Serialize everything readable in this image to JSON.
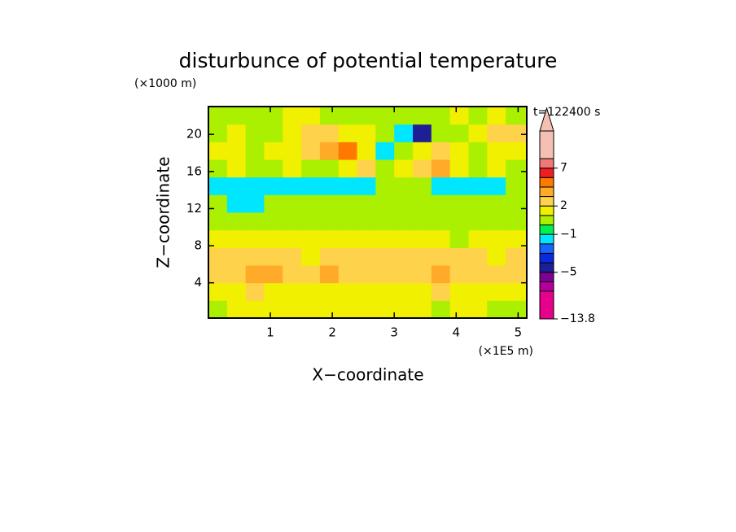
{
  "chart_data": {
    "type": "contour",
    "title": "disturbunce of potential temperature",
    "y_unit": "(×1000 m)",
    "x_unit": "(×1E5 m)",
    "xlabel": "X−coordinate",
    "ylabel": "Z−coordinate",
    "annotation": "t=122400 s",
    "xlim": [
      0,
      5.14
    ],
    "ylim": [
      0.2,
      23
    ],
    "xticks": [
      1,
      2,
      3,
      4,
      5
    ],
    "yticks": [
      4,
      8,
      12,
      16,
      20
    ],
    "x": [
      0.15,
      0.45,
      0.75,
      1.05,
      1.35,
      1.65,
      1.95,
      2.25,
      2.55,
      2.85,
      3.15,
      3.45,
      3.75,
      4.05,
      4.35,
      4.65,
      4.95
    ],
    "z": [
      1.15,
      3.05,
      4.95,
      6.85,
      8.75,
      10.65,
      12.55,
      14.45,
      16.35,
      18.25,
      20.15,
      22.05
    ],
    "values": [
      [
        0.5,
        1.5,
        1.5,
        1.5,
        1.5,
        1.5,
        1.5,
        1.5,
        1.5,
        1.5,
        1.5,
        1.5,
        0.5,
        1.5,
        1.5,
        0.5,
        0.5
      ],
      [
        1.5,
        1.5,
        2.5,
        1.5,
        1.5,
        1.5,
        1.5,
        1.5,
        1.5,
        1.5,
        1.5,
        1.5,
        2.5,
        1.5,
        1.5,
        1.5,
        1.5
      ],
      [
        2.5,
        2.5,
        3.5,
        3.5,
        2.5,
        2.5,
        3.5,
        2.5,
        2.5,
        2.5,
        2.5,
        2.5,
        3.5,
        2.5,
        2.5,
        2.5,
        2.5
      ],
      [
        2.5,
        2.5,
        2.5,
        2.5,
        2.5,
        1.5,
        2.5,
        2.5,
        2.5,
        2.5,
        2.5,
        2.5,
        2.5,
        2.5,
        2.5,
        1.5,
        2.5
      ],
      [
        1.5,
        1.5,
        1.5,
        1.5,
        1.5,
        1.5,
        1.5,
        1.5,
        1.5,
        1.5,
        1.5,
        1.5,
        1.5,
        0.5,
        1.5,
        1.5,
        1.5
      ],
      [
        0.5,
        0.5,
        0.5,
        0.5,
        0.5,
        0.5,
        0.5,
        0.5,
        0.5,
        0.5,
        0.5,
        0.5,
        0.5,
        0.5,
        0.5,
        0.5,
        0.5
      ],
      [
        0.5,
        -1.5,
        -1.5,
        0.5,
        0.5,
        0.5,
        0.5,
        0.5,
        0.5,
        0.5,
        0.5,
        0.5,
        0.5,
        0.5,
        0.5,
        0.5,
        0.5
      ],
      [
        -1.5,
        -1.5,
        -1.5,
        -1.5,
        -1.5,
        -1.5,
        -1.5,
        -1.5,
        -1.5,
        0.5,
        0.5,
        0.5,
        -1.5,
        -1.5,
        -1.5,
        -1.5,
        0.5
      ],
      [
        0.5,
        1.5,
        0.5,
        0.5,
        1.5,
        0.5,
        0.5,
        1.5,
        2.5,
        0.5,
        1.5,
        2.5,
        3.5,
        1.5,
        0.5,
        1.5,
        0.5
      ],
      [
        1.5,
        1.5,
        0.5,
        1.5,
        1.5,
        2.5,
        3.5,
        4.5,
        1.5,
        -1.5,
        0.5,
        1.5,
        2.5,
        1.5,
        0.5,
        1.5,
        1.5
      ],
      [
        0.5,
        1.5,
        0.5,
        0.5,
        1.5,
        2.5,
        2.5,
        1.5,
        1.5,
        0.5,
        -1.5,
        -4.5,
        0.5,
        0.5,
        1.5,
        2.5,
        2.5
      ],
      [
        0.5,
        0.5,
        0.5,
        0.5,
        1.5,
        1.5,
        0.5,
        0.5,
        0.5,
        0.5,
        0.5,
        0.5,
        0.5,
        1.5,
        0.5,
        1.5,
        0.5
      ]
    ],
    "levels": [
      -13.8,
      -7,
      -6,
      -5,
      -4,
      -3,
      -2,
      -1,
      0,
      1,
      2,
      3,
      4,
      5,
      7,
      9,
      14
    ],
    "colors": [
      "#e6008c",
      "#b4009b",
      "#800096",
      "#1e1e96",
      "#0a28dc",
      "#1464ff",
      "#00e6ff",
      "#00f050",
      "#aaf000",
      "#f0f000",
      "#ffd24b",
      "#ffaa28",
      "#ff7800",
      "#f01e1e",
      "#f07878",
      "#f5c0b4"
    ],
    "colorbar_ticks": [
      {
        "value": -13.8,
        "label": "−13.8"
      },
      {
        "value": -5,
        "label": "−5"
      },
      {
        "value": -1,
        "label": "−1"
      },
      2,
      7
    ]
  }
}
